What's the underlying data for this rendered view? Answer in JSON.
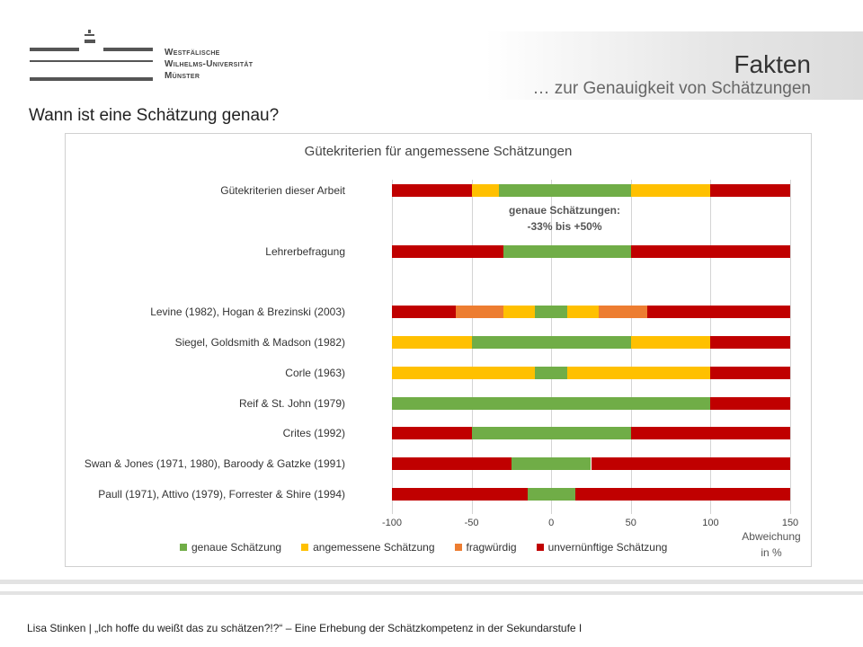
{
  "header": {
    "logo_lines": [
      "Westfälische",
      "Wilhelms-Universität",
      "Münster"
    ],
    "title": "Fakten",
    "subtitle": "… zur Genauigkeit von Schätzungen"
  },
  "question": "Wann ist eine Schätzung genau?",
  "chart_data": {
    "type": "bar",
    "orientation": "horizontal-stacked-ranges",
    "title": "Gütekriterien für angemessene Schätzungen",
    "xlabel": "Abweichung in %",
    "xlim": [
      -100,
      150
    ],
    "xticks": [
      -100,
      -50,
      0,
      50,
      100,
      150
    ],
    "grid": true,
    "legend_position": "bottom",
    "classes": [
      {
        "key": "g",
        "name": "genaue Schätzung",
        "color": "#70ad47"
      },
      {
        "key": "y",
        "name": "angemessene Schätzung",
        "color": "#ffc000"
      },
      {
        "key": "o",
        "name": "fragwürdig",
        "color": "#ed7d31"
      },
      {
        "key": "r",
        "name": "unvernünftige Schätzung",
        "color": "#c00000"
      }
    ],
    "rows": [
      {
        "label": "Gütekriterien dieser Arbeit",
        "segments": [
          [
            -100,
            -50,
            "r"
          ],
          [
            -50,
            -33,
            "y"
          ],
          [
            -33,
            50,
            "g"
          ],
          [
            50,
            100,
            "y"
          ],
          [
            100,
            150,
            "r"
          ]
        ]
      },
      {
        "label": "Lehrerbefragung",
        "segments": [
          [
            -100,
            -30,
            "r"
          ],
          [
            -30,
            50,
            "g"
          ],
          [
            50,
            150,
            "r"
          ]
        ]
      },
      {
        "label": "Levine (1982), Hogan & Brezinski (2003)",
        "segments": [
          [
            -100,
            -60,
            "r"
          ],
          [
            -60,
            -30,
            "o"
          ],
          [
            -30,
            -10,
            "y"
          ],
          [
            -10,
            10,
            "g"
          ],
          [
            10,
            30,
            "y"
          ],
          [
            30,
            60,
            "o"
          ],
          [
            60,
            150,
            "r"
          ]
        ]
      },
      {
        "label": "Siegel, Goldsmith & Madson (1982)",
        "segments": [
          [
            -100,
            -50,
            "y"
          ],
          [
            -50,
            50,
            "g"
          ],
          [
            50,
            100,
            "y"
          ],
          [
            100,
            150,
            "r"
          ]
        ]
      },
      {
        "label": "Corle (1963)",
        "segments": [
          [
            -100,
            -10,
            "y"
          ],
          [
            -10,
            10,
            "g"
          ],
          [
            10,
            100,
            "y"
          ],
          [
            100,
            150,
            "r"
          ]
        ]
      },
      {
        "label": "Reif & St. John (1979)",
        "segments": [
          [
            -100,
            100,
            "g"
          ],
          [
            100,
            150,
            "r"
          ]
        ]
      },
      {
        "label": "Crites (1992)",
        "segments": [
          [
            -100,
            -50,
            "r"
          ],
          [
            -50,
            50,
            "g"
          ],
          [
            50,
            150,
            "r"
          ]
        ]
      },
      {
        "label": "Swan & Jones (1971, 1980), Baroody & Gatzke (1991)",
        "segments": [
          [
            -100,
            -25,
            "r"
          ],
          [
            -25,
            25,
            "g"
          ],
          [
            25,
            150,
            "r"
          ]
        ]
      },
      {
        "label": "Paull (1971), Attivo (1979), Forrester & Shire (1994)",
        "segments": [
          [
            -100,
            -15,
            "r"
          ],
          [
            -15,
            15,
            "g"
          ],
          [
            15,
            150,
            "r"
          ]
        ]
      }
    ],
    "annotation": [
      "genaue Schätzungen:",
      "-33% bis +50%"
    ],
    "xlabel_lines": [
      "Abweichung",
      "in %"
    ]
  },
  "footer": "Lisa Stinken | „Ich hoffe du weißt das zu schätzen?!?“ – Eine Erhebung der Schätzkompetenz in der Sekundarstufe I"
}
